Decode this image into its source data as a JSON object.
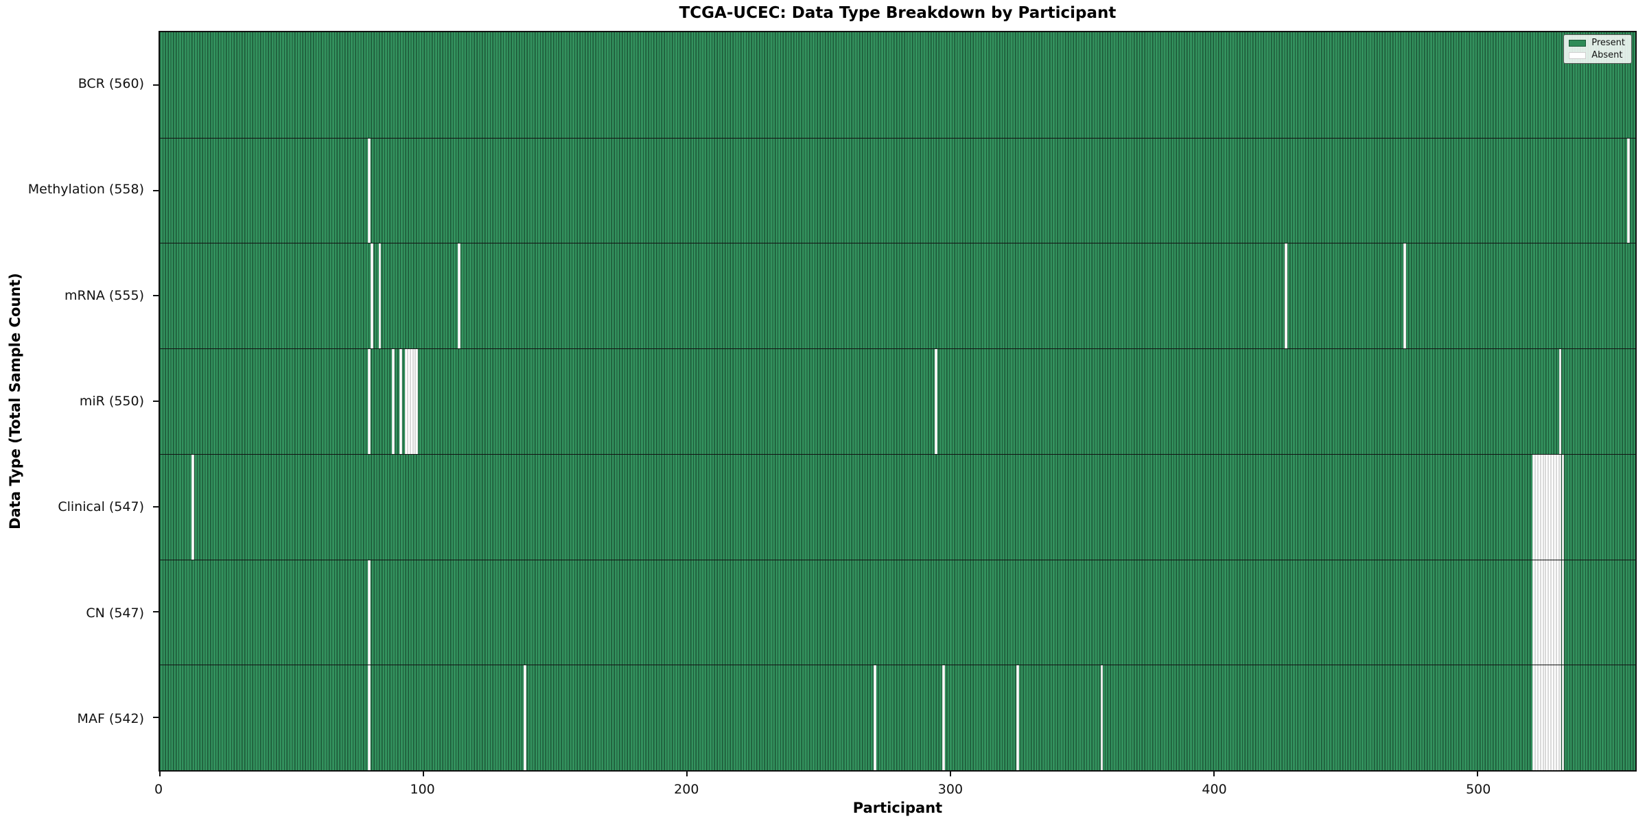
{
  "title": "TCGA-UCEC: Data Type Breakdown by Participant",
  "chart_data": {
    "type": "heatmap",
    "title": "TCGA-UCEC: Data Type Breakdown by Participant",
    "xlabel": "Participant",
    "ylabel": "Data Type (Total Sample Count)",
    "xlim": [
      0,
      560
    ],
    "n_participants": 560,
    "x_ticks": [
      0,
      100,
      200,
      300,
      400,
      500
    ],
    "grid": false,
    "legend_position": "upper right",
    "legend": {
      "entries": [
        {
          "label": "Present",
          "color": "#2e8b57"
        },
        {
          "label": "Absent",
          "color": "#ffffff"
        }
      ]
    },
    "colors": {
      "present_face": "#33925e",
      "present_edge": "#1c5737",
      "absent_face": "#ffffff",
      "absent_edge": "#d9d9d9"
    },
    "rows": [
      {
        "label": "BCR (560)",
        "data_type": "BCR",
        "present_count": 560,
        "absent_participants": []
      },
      {
        "label": "Methylation (558)",
        "data_type": "Methylation",
        "present_count": 558,
        "absent_participants": [
          79,
          557
        ]
      },
      {
        "label": "mRNA (555)",
        "data_type": "mRNA",
        "present_count": 555,
        "absent_participants": [
          80,
          83,
          113,
          427,
          472
        ]
      },
      {
        "label": "miR (550)",
        "data_type": "miR",
        "present_count": 550,
        "absent_participants": [
          79,
          88,
          91,
          93,
          94,
          95,
          96,
          97,
          294,
          531
        ]
      },
      {
        "label": "Clinical (547)",
        "data_type": "Clinical",
        "present_count": 547,
        "absent_participants": [
          12,
          521,
          522,
          523,
          524,
          525,
          526,
          527,
          528,
          529,
          530,
          531,
          532
        ]
      },
      {
        "label": "CN (547)",
        "data_type": "CN",
        "present_count": 547,
        "absent_participants": [
          79,
          521,
          522,
          523,
          524,
          525,
          526,
          527,
          528,
          529,
          530,
          531,
          532
        ]
      },
      {
        "label": "MAF (542)",
        "data_type": "MAF",
        "present_count": 542,
        "absent_participants": [
          79,
          138,
          271,
          297,
          325,
          357,
          521,
          522,
          523,
          524,
          525,
          526,
          527,
          528,
          529,
          530,
          531,
          532
        ]
      }
    ]
  }
}
